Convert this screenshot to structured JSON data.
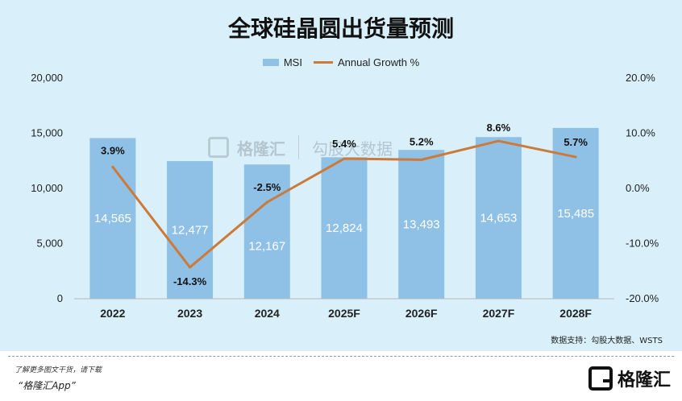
{
  "chart_data": {
    "type": "bar",
    "title": "全球硅晶圆出货量预测",
    "categories": [
      "2022",
      "2023",
      "2024",
      "2025F",
      "2026F",
      "2027F",
      "2028F"
    ],
    "series": [
      {
        "name": "MSI",
        "type": "bar",
        "axis": "left",
        "values": [
          14565,
          12477,
          12167,
          12824,
          13493,
          14653,
          15485
        ],
        "labels": [
          "14,565",
          "12,477",
          "12,167",
          "12,824",
          "13,493",
          "14,653",
          "15,485"
        ],
        "color": "#8fc0e6"
      },
      {
        "name": "Annual Growth %",
        "type": "line",
        "axis": "right",
        "values": [
          3.9,
          -14.3,
          -2.5,
          5.4,
          5.2,
          8.6,
          5.7
        ],
        "labels": [
          "3.9%",
          "-14.3%",
          "-2.5%",
          "5.4%",
          "5.2%",
          "8.6%",
          "5.7%"
        ],
        "color": "#cc7a3a"
      }
    ],
    "y_left": {
      "range": [
        0,
        20000
      ],
      "ticks": [
        0,
        5000,
        10000,
        15000,
        20000
      ],
      "tick_labels": [
        "0",
        "5,000",
        "10,000",
        "15,000",
        "20,000"
      ]
    },
    "y_right": {
      "range": [
        -20,
        20
      ],
      "ticks": [
        -20,
        -10,
        0,
        10,
        20
      ],
      "tick_labels": [
        "-20.0%",
        "-10.0%",
        "0.0%",
        "10.0%",
        "20.0%"
      ]
    },
    "grid": false,
    "legend_position": "top-center"
  },
  "source_note": "数据支持：勾股大数据、WSTS",
  "watermark": {
    "brand": "格隆汇",
    "brand2": "勾股大数据"
  },
  "footer": {
    "line1": "了解更多图文干货，请下载",
    "line2": "“格隆汇App”",
    "logo_text": "格隆汇"
  },
  "colors": {
    "background": "#d9f0fa",
    "bar": "#8fc0e6",
    "line": "#cc7a3a"
  }
}
